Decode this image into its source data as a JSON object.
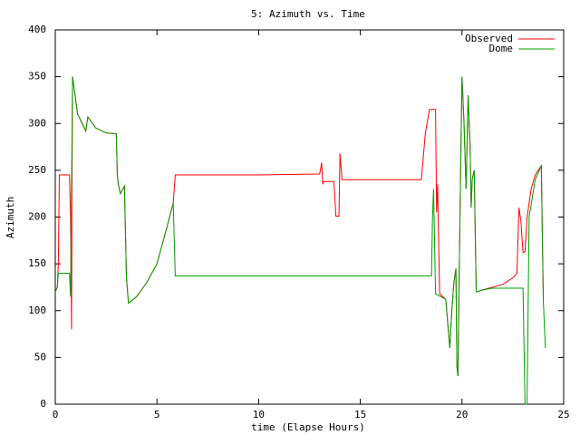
{
  "chart_data": {
    "type": "line",
    "title": "5: Azimuth vs. Time",
    "x_label": "time (Elapse Hours)",
    "y_label": "Azimuth",
    "xlim": [
      0,
      25
    ],
    "xticks": [
      0,
      5,
      10,
      15,
      20,
      25
    ],
    "ylim": [
      0,
      400
    ],
    "yticks": [
      0,
      50,
      100,
      150,
      200,
      250,
      300,
      350,
      400
    ],
    "legend": "top-right",
    "series": [
      {
        "name": "Observed",
        "color": "#ff0000",
        "x": [
          0,
          0.1,
          0.15,
          0.2,
          0.7,
          0.75,
          0.8,
          0.82,
          0.85,
          1.1,
          1.5,
          1.6,
          2,
          2.5,
          3,
          3.05,
          3.1,
          3.2,
          3.4,
          3.5,
          3.6,
          4,
          4.5,
          5,
          5.5,
          5.8,
          5.9,
          10,
          13,
          13.1,
          13.15,
          13.2,
          13.7,
          13.8,
          13.95,
          14,
          14.1,
          18,
          18.2,
          18.4,
          18.7,
          18.75,
          18.8,
          18.85,
          18.9,
          19.2,
          19.4,
          19.5,
          19.6,
          19.7,
          19.75,
          19.8,
          19.9,
          20,
          20.1,
          20.2,
          20.3,
          20.4,
          20.45,
          20.5,
          20.6,
          20.7,
          21,
          21.5,
          22,
          22.5,
          22.7,
          22.8,
          22.9,
          23,
          23.1,
          23.2,
          23.4,
          23.6,
          23.9,
          24
        ],
        "values": [
          120,
          125,
          150,
          245,
          245,
          200,
          80,
          227,
          350,
          310,
          292,
          307,
          295,
          290,
          289,
          245,
          235,
          225,
          233,
          135,
          108,
          115,
          130,
          150,
          190,
          215,
          245,
          245,
          246,
          258,
          235,
          238,
          238,
          201,
          201,
          268,
          240,
          240,
          290,
          315,
          315,
          205,
          235,
          175,
          118,
          112,
          60,
          100,
          130,
          145,
          40,
          30,
          200,
          350,
          300,
          230,
          330,
          275,
          210,
          240,
          250,
          120,
          122,
          125,
          128,
          135,
          140,
          210,
          195,
          162,
          163,
          200,
          230,
          245,
          255,
          110
        ]
      },
      {
        "name": "Dome",
        "color": "#00a000",
        "x": [
          0,
          0.1,
          0.15,
          0.7,
          0.75,
          0.85,
          1.1,
          1.5,
          1.6,
          2,
          2.5,
          3,
          3.05,
          3.1,
          3.2,
          3.4,
          3.5,
          3.6,
          4,
          4.5,
          5,
          5.5,
          5.8,
          5.9,
          18.5,
          18.55,
          18.6,
          18.7,
          19.2,
          19.4,
          19.5,
          19.6,
          19.7,
          19.75,
          19.8,
          19.9,
          20,
          20.1,
          20.2,
          20.3,
          20.4,
          20.45,
          20.5,
          20.6,
          20.7,
          21,
          21.5,
          23,
          23.1,
          23.2,
          23.3,
          23.6,
          23.9,
          24,
          24.1
        ],
        "values": [
          120,
          125,
          140,
          140,
          115,
          350,
          310,
          292,
          307,
          295,
          290,
          289,
          245,
          235,
          225,
          233,
          135,
          108,
          115,
          130,
          150,
          190,
          215,
          137,
          137,
          200,
          230,
          118,
          112,
          60,
          100,
          130,
          145,
          40,
          30,
          200,
          350,
          300,
          230,
          330,
          275,
          210,
          240,
          250,
          120,
          122,
          124,
          124,
          0,
          0,
          200,
          240,
          255,
          110,
          60
        ]
      }
    ]
  }
}
